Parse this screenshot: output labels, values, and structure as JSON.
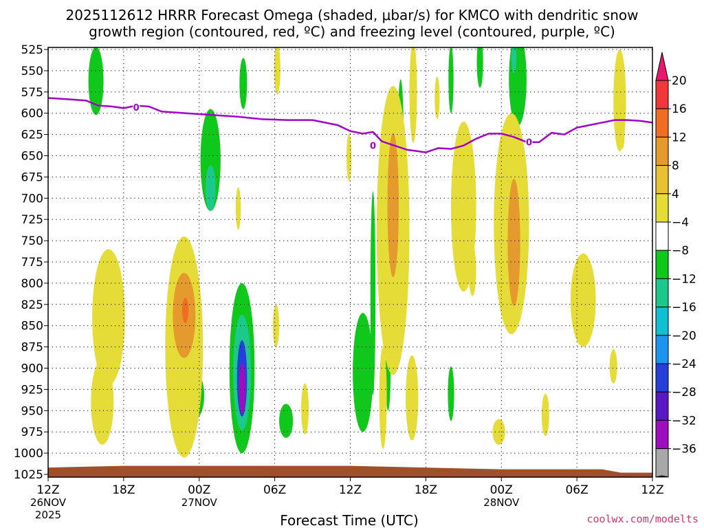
{
  "chart_data": {
    "type": "contour-timeheight",
    "title_line1": "2025112612 HRRR Forecast Omega (shaded, μbar/s) for KMCO with dendritic snow",
    "title_line2": "growth region (contoured, red, ºC) and freezing level (contoured, purple, ºC)",
    "xlabel": "Forecast Time (UTC)",
    "credit": "coolwx.com/modelts",
    "x_range_hours": [
      0,
      48
    ],
    "y_range_hpa": [
      1025,
      525
    ],
    "y_ticks": [
      525,
      550,
      575,
      600,
      625,
      650,
      675,
      700,
      725,
      750,
      775,
      800,
      825,
      850,
      875,
      900,
      925,
      950,
      975,
      1000,
      1025
    ],
    "x_ticks": [
      {
        "h": 0,
        "label": "12Z",
        "sub": "26NOV",
        "sub2": "2025"
      },
      {
        "h": 6,
        "label": "18Z",
        "sub": "",
        "sub2": ""
      },
      {
        "h": 12,
        "label": "00Z",
        "sub": "27NOV",
        "sub2": ""
      },
      {
        "h": 18,
        "label": "06Z",
        "sub": "",
        "sub2": ""
      },
      {
        "h": 24,
        "label": "12Z",
        "sub": "",
        "sub2": ""
      },
      {
        "h": 30,
        "label": "18Z",
        "sub": "",
        "sub2": ""
      },
      {
        "h": 36,
        "label": "00Z",
        "sub": "28NOV",
        "sub2": ""
      },
      {
        "h": 42,
        "label": "06Z",
        "sub": "",
        "sub2": ""
      },
      {
        "h": 48,
        "label": "12Z",
        "sub": "",
        "sub2": ""
      }
    ],
    "colorbar": {
      "labels": [
        "20",
        "16",
        "12",
        "8",
        "4",
        "−4",
        "−8",
        "−12",
        "−16",
        "−20",
        "−24",
        "−28",
        "−32",
        "−36"
      ],
      "colors": [
        "#e8186e",
        "#f0383c",
        "#f06e24",
        "#e49a2c",
        "#e8c232",
        "#e6dc38",
        "#ffffff",
        "#10c81c",
        "#1cc88c",
        "#12c0d4",
        "#1e94ee",
        "#2440d8",
        "#5a18c4",
        "#9e0ebe",
        "#a8a8a8",
        "#000000"
      ]
    },
    "freezing_level": {
      "label": "0",
      "color": "#a000c8",
      "points": [
        [
          0,
          582
        ],
        [
          2,
          584
        ],
        [
          3,
          585
        ],
        [
          4,
          591
        ],
        [
          5,
          592
        ],
        [
          6,
          594
        ],
        [
          7,
          591
        ],
        [
          8,
          592
        ],
        [
          9,
          598
        ],
        [
          11,
          600
        ],
        [
          13,
          602
        ],
        [
          15,
          604
        ],
        [
          17,
          607
        ],
        [
          19,
          608
        ],
        [
          21,
          608
        ],
        [
          23,
          614
        ],
        [
          24,
          621
        ],
        [
          25,
          624
        ],
        [
          25.8,
          622
        ],
        [
          26.5,
          633
        ],
        [
          27.5,
          638
        ],
        [
          28.5,
          643
        ],
        [
          30,
          646
        ],
        [
          31,
          641
        ],
        [
          32,
          642
        ],
        [
          33,
          638
        ],
        [
          34,
          630
        ],
        [
          35,
          624
        ],
        [
          36,
          624
        ],
        [
          37,
          628
        ],
        [
          38,
          634
        ],
        [
          39,
          634
        ],
        [
          40,
          623
        ],
        [
          41,
          625
        ],
        [
          42,
          617
        ],
        [
          43,
          614
        ],
        [
          44,
          611
        ],
        [
          45,
          608
        ],
        [
          46,
          608
        ],
        [
          47,
          609
        ],
        [
          48,
          611
        ]
      ],
      "label_points": [
        [
          7,
          593
        ],
        [
          25.8,
          638
        ],
        [
          38.2,
          634
        ]
      ]
    },
    "omega_features": [
      {
        "t": 3.8,
        "p": 562,
        "dt": 0.6,
        "dp": 40,
        "v": -6
      },
      {
        "t": 12.9,
        "p": 655,
        "dt": 0.8,
        "dp": 60,
        "v": -6
      },
      {
        "t": 12.9,
        "p": 688,
        "dt": 0.4,
        "dp": 27,
        "v": -11
      },
      {
        "t": 11.7,
        "p": 932,
        "dt": 0.7,
        "dp": 27,
        "v": -6
      },
      {
        "t": 15.5,
        "p": 565,
        "dt": 0.3,
        "dp": 30,
        "v": -5
      },
      {
        "t": 15.4,
        "p": 900,
        "dt": 1.0,
        "dp": 100,
        "v": -6
      },
      {
        "t": 15.4,
        "p": 905,
        "dt": 0.7,
        "dp": 68,
        "v": -11
      },
      {
        "t": 15.4,
        "p": 912,
        "dt": 0.4,
        "dp": 45,
        "v": -20
      },
      {
        "t": 15.4,
        "p": 924,
        "dt": 0.25,
        "dp": 30,
        "v": -30
      },
      {
        "t": 18.9,
        "p": 962,
        "dt": 0.55,
        "dp": 20,
        "v": -6
      },
      {
        "t": 25.0,
        "p": 905,
        "dt": 0.8,
        "dp": 70,
        "v": -6
      },
      {
        "t": 25.8,
        "p": 812,
        "dt": 0.2,
        "dp": 120,
        "v": -6
      },
      {
        "t": 28.0,
        "p": 640,
        "dt": 0.25,
        "dp": 80,
        "v": -6
      },
      {
        "t": 27.0,
        "p": 905,
        "dt": 0.2,
        "dp": 45,
        "v": -6
      },
      {
        "t": 32.0,
        "p": 560,
        "dt": 0.2,
        "dp": 40,
        "v": -5
      },
      {
        "t": 32.0,
        "p": 930,
        "dt": 0.25,
        "dp": 32,
        "v": -6
      },
      {
        "t": 34.3,
        "p": 540,
        "dt": 0.25,
        "dp": 30,
        "v": -5
      },
      {
        "t": 37.3,
        "p": 560,
        "dt": 0.7,
        "dp": 55,
        "v": -6
      },
      {
        "t": 37.0,
        "p": 535,
        "dt": 0.2,
        "dp": 18,
        "v": -9
      },
      {
        "t": 4.8,
        "p": 840,
        "dt": 1.3,
        "dp": 80,
        "v": 5
      },
      {
        "t": 4.3,
        "p": 940,
        "dt": 0.9,
        "dp": 50,
        "v": 5
      },
      {
        "t": 10.8,
        "p": 875,
        "dt": 1.5,
        "dp": 130,
        "v": 5
      },
      {
        "t": 10.8,
        "p": 838,
        "dt": 0.9,
        "dp": 50,
        "v": 10
      },
      {
        "t": 10.9,
        "p": 832,
        "dt": 0.25,
        "dp": 15,
        "v": 14
      },
      {
        "t": 15.1,
        "p": 712,
        "dt": 0.2,
        "dp": 25,
        "v": 5
      },
      {
        "t": 18.1,
        "p": 850,
        "dt": 0.25,
        "dp": 25,
        "v": 5
      },
      {
        "t": 18.2,
        "p": 548,
        "dt": 0.25,
        "dp": 30,
        "v": 5
      },
      {
        "t": 20.4,
        "p": 948,
        "dt": 0.3,
        "dp": 30,
        "v": 5
      },
      {
        "t": 23.9,
        "p": 652,
        "dt": 0.2,
        "dp": 28,
        "v": 5
      },
      {
        "t": 26.6,
        "p": 935,
        "dt": 0.3,
        "dp": 60,
        "v": 5
      },
      {
        "t": 27.4,
        "p": 738,
        "dt": 1.3,
        "dp": 170,
        "v": 5
      },
      {
        "t": 27.4,
        "p": 708,
        "dt": 0.45,
        "dp": 85,
        "v": 9
      },
      {
        "t": 28.9,
        "p": 935,
        "dt": 0.5,
        "dp": 50,
        "v": 5
      },
      {
        "t": 29.0,
        "p": 575,
        "dt": 0.3,
        "dp": 60,
        "v": 5
      },
      {
        "t": 30.9,
        "p": 582,
        "dt": 0.2,
        "dp": 25,
        "v": 5
      },
      {
        "t": 33.0,
        "p": 710,
        "dt": 1.0,
        "dp": 100,
        "v": 5
      },
      {
        "t": 33.7,
        "p": 785,
        "dt": 0.3,
        "dp": 30,
        "v": 5
      },
      {
        "t": 36.8,
        "p": 730,
        "dt": 1.4,
        "dp": 130,
        "v": 5
      },
      {
        "t": 37.0,
        "p": 752,
        "dt": 0.5,
        "dp": 75,
        "v": 9
      },
      {
        "t": 35.8,
        "p": 975,
        "dt": 0.5,
        "dp": 15,
        "v": 5
      },
      {
        "t": 39.5,
        "p": 955,
        "dt": 0.3,
        "dp": 25,
        "v": 5
      },
      {
        "t": 42.5,
        "p": 820,
        "dt": 1.0,
        "dp": 55,
        "v": 5
      },
      {
        "t": 45.4,
        "p": 585,
        "dt": 0.5,
        "dp": 60,
        "v": 5
      },
      {
        "t": 45.6,
        "p": 622,
        "dt": 0.2,
        "dp": 20,
        "v": 5
      },
      {
        "t": 44.9,
        "p": 898,
        "dt": 0.3,
        "dp": 20,
        "v": 5
      }
    ],
    "terrain": {
      "color": "#a05028",
      "top_hpa": 1015
    }
  }
}
